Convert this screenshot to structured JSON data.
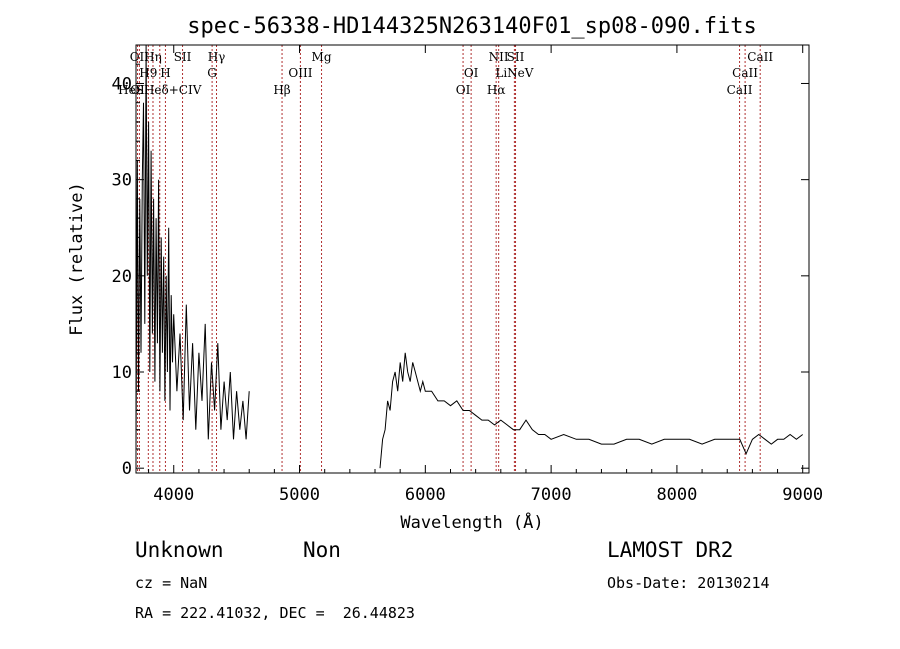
{
  "title": "spec-56338-HD144325N263140F01_sp08-090.fits",
  "footer": {
    "class_label": "Unknown",
    "subclass_label": "Non",
    "cz": "cz = NaN",
    "coords": "RA = 222.41032, DEC =  26.44823",
    "survey": "LAMOST DR2",
    "obs_date": "Obs-Date: 20130214"
  },
  "chart_data": {
    "type": "line",
    "title": "spec-56338-HD144325N263140F01_sp08-090.fits",
    "xlabel": "Wavelength (Å)",
    "ylabel": "Flux (relative)",
    "xlim": [
      3700,
      9050
    ],
    "ylim": [
      -0.5,
      44
    ],
    "xticks": [
      4000,
      5000,
      6000,
      7000,
      8000,
      9000
    ],
    "yticks": [
      0,
      10,
      20,
      30,
      40
    ],
    "grid": false,
    "series": [
      {
        "segments": [
          {
            "x": [
              3700,
              3710,
              3720,
              3730,
              3740,
              3750,
              3760,
              3770,
              3780,
              3790,
              3800,
              3810,
              3820,
              3830,
              3840,
              3850,
              3860,
              3870,
              3880,
              3890,
              3900,
              3910,
              3920,
              3930,
              3940,
              3950,
              3960,
              3970,
              3980,
              3990,
              4000,
              4025,
              4050,
              4075,
              4100,
              4125,
              4150,
              4175,
              4200,
              4225,
              4250,
              4275,
              4300,
              4325,
              4350,
              4375,
              4400,
              4425,
              4450,
              4475,
              4500,
              4525,
              4550,
              4575,
              4600
            ],
            "y": [
              2,
              32,
              8,
              28,
              12,
              30,
              38,
              15,
              44,
              20,
              36,
              10,
              33,
              14,
              28,
              9,
              26,
              13,
              30,
              8,
              24,
              12,
              22,
              7,
              20,
              10,
              25,
              6,
              18,
              11,
              16,
              8,
              14,
              5,
              17,
              6,
              13,
              4,
              12,
              7,
              15,
              3,
              11,
              6,
              13,
              4,
              9,
              5,
              10,
              3,
              8,
              4,
              7,
              3,
              8
            ]
          },
          {
            "x": [
              5640,
              5660,
              5680,
              5700,
              5720,
              5740,
              5760,
              5780,
              5800,
              5820,
              5840,
              5860,
              5880,
              5900,
              5920,
              5940,
              5960,
              5980,
              6000,
              6050,
              6100,
              6150,
              6200,
              6250,
              6300,
              6350,
              6400,
              6450,
              6500,
              6550,
              6600,
              6650,
              6700,
              6750,
              6800,
              6850,
              6900,
              6950,
              7000,
              7100,
              7200,
              7300,
              7400,
              7500,
              7600,
              7700,
              7800,
              7900,
              8000,
              8100,
              8200,
              8300,
              8400,
              8500,
              8550,
              8600,
              8650,
              8700,
              8750,
              8800,
              8850,
              8900,
              8950,
              9000
            ],
            "y": [
              0,
              3,
              4,
              7,
              6,
              9,
              10,
              8,
              11,
              9,
              12,
              10,
              9,
              11,
              10,
              9,
              8,
              9,
              8,
              8,
              7,
              7,
              6.5,
              7,
              6,
              6,
              5.5,
              5,
              5,
              4.5,
              5,
              4.5,
              4,
              4,
              5,
              4,
              3.5,
              3.5,
              3,
              3.5,
              3,
              3,
              2.5,
              2.5,
              3,
              3,
              2.5,
              3,
              3,
              3,
              2.5,
              3,
              3,
              3,
              1.5,
              3,
              3.5,
              3,
              2.5,
              3,
              3,
              3.5,
              3,
              3.5
            ]
          }
        ]
      }
    ],
    "lines": [
      {
        "label": "OII",
        "x": 3727,
        "row": 0
      },
      {
        "label": "Hη",
        "x": 3835,
        "row": 0
      },
      {
        "label": "SII",
        "x": 4070,
        "row": 0
      },
      {
        "label": "Hγ",
        "x": 4340,
        "row": 0
      },
      {
        "label": "Mg",
        "x": 5175,
        "row": 0
      },
      {
        "label": "NII",
        "x": 6583,
        "row": 0
      },
      {
        "label": "SII",
        "x": 6717,
        "row": 0
      },
      {
        "label": "CaII",
        "x": 8662,
        "row": 0
      },
      {
        "label": "H9",
        "x": 3798,
        "row": 1
      },
      {
        "label": "H",
        "x": 3934,
        "row": 1
      },
      {
        "label": "G",
        "x": 4305,
        "row": 1
      },
      {
        "label": "OIII",
        "x": 5007,
        "row": 1
      },
      {
        "label": "OI",
        "x": 6364,
        "row": 1
      },
      {
        "label": "LiNeV",
        "x": 6708,
        "row": 1
      },
      {
        "label": "CaII",
        "x": 8542,
        "row": 1
      },
      {
        "label": "OI",
        "x": 3712,
        "row": 2
      },
      {
        "label": "HeSHeδ+CIV",
        "x": 3889,
        "row": 2
      },
      {
        "label": "Hβ",
        "x": 4861,
        "row": 2
      },
      {
        "label": "OI",
        "x": 6300,
        "row": 2
      },
      {
        "label": "Hα",
        "x": 6563,
        "row": 2
      },
      {
        "label": "CaII",
        "x": 8498,
        "row": 2
      }
    ],
    "colors": {
      "spectrum": "#000000",
      "lines": "#b03030",
      "axes": "#000000"
    }
  }
}
